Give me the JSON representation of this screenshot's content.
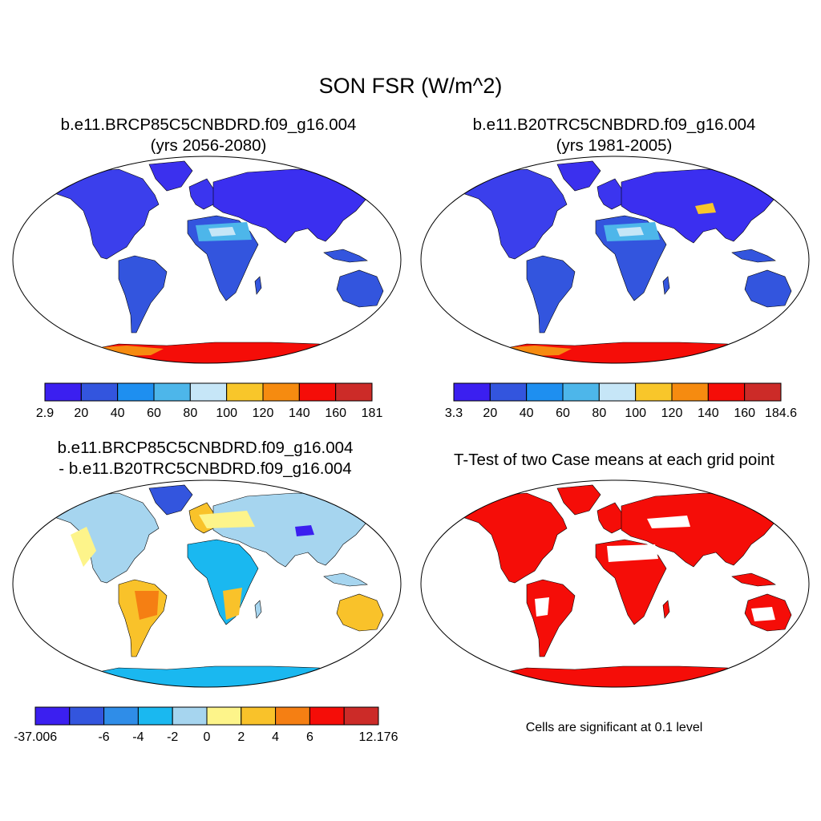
{
  "figure": {
    "title": "SON FSR (W/m^2)"
  },
  "panels": [
    {
      "id": "case1",
      "title_line1": "b.e11.BRCP85C5CNBDRD.f09_g16.004",
      "title_line2": "(yrs 2056-2080)",
      "colorbar": {
        "colors": [
          "#3b1ff0",
          "#3355de",
          "#1e8ff0",
          "#4db6ea",
          "#c6e6f7",
          "#f8c62a",
          "#f68b10",
          "#f50d08",
          "#cc2b28"
        ],
        "labels": [
          "2.9",
          "20",
          "40",
          "60",
          "80",
          "100",
          "120",
          "140",
          "160",
          "181"
        ]
      }
    },
    {
      "id": "case2",
      "title_line1": "b.e11.B20TRC5CNBDRD.f09_g16.004",
      "title_line2": "(yrs 1981-2005)",
      "colorbar": {
        "colors": [
          "#3b1ff0",
          "#3355de",
          "#1e8ff0",
          "#4db6ea",
          "#c6e6f7",
          "#f8c62a",
          "#f68b10",
          "#f50d08",
          "#cc2b28"
        ],
        "labels": [
          "3.3",
          "20",
          "40",
          "60",
          "80",
          "100",
          "120",
          "140",
          "160",
          "184.6"
        ]
      }
    },
    {
      "id": "diff",
      "title_line1": "b.e11.BRCP85C5CNBDRD.f09_g16.004",
      "title_line2": "- b.e11.B20TRC5CNBDRD.f09_g16.004",
      "colorbar": {
        "colors": [
          "#3b1ff0",
          "#3355de",
          "#2f8de8",
          "#1ab8f0",
          "#a6d5ef",
          "#fdf48a",
          "#f9c22a",
          "#f57f13",
          "#f50d08",
          "#cc2b28"
        ],
        "labels": [
          "-37.006",
          "",
          "-6",
          "-4",
          "-2",
          "0",
          "2",
          "4",
          "6",
          "",
          "12.176"
        ]
      }
    },
    {
      "id": "ttest",
      "title_line1": "T-Test of two Case means at each grid point",
      "footnote": "Cells are significant at 0.1 level"
    }
  ]
}
